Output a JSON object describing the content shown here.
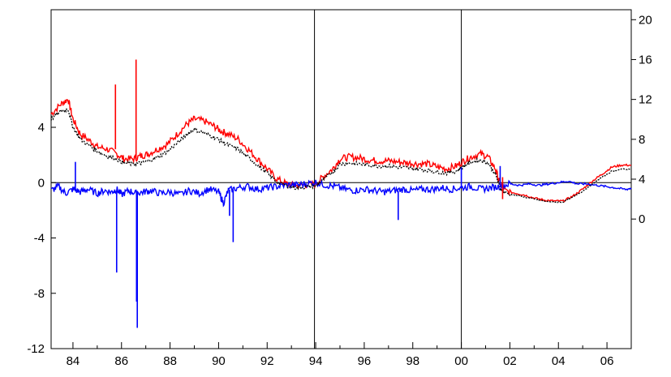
{
  "chart_data": {
    "type": "line",
    "title": "",
    "xlabel": "",
    "ylabel_left": "",
    "ylabel_right": "",
    "x_range": [
      1983.1,
      2007.0
    ],
    "x_tick_labels": [
      "84",
      "86",
      "88",
      "90",
      "92",
      "94",
      "96",
      "98",
      "00",
      "02",
      "04",
      "06"
    ],
    "x_tick_values": [
      1984,
      1986,
      1988,
      1990,
      1992,
      1994,
      1996,
      1998,
      2000,
      2002,
      2004,
      2006
    ],
    "left_axis": {
      "range": [
        -12,
        12.5
      ],
      "ticks": [
        -12,
        -8,
        -4,
        0,
        4
      ],
      "tick_labels": [
        "-12",
        "-8",
        "-4",
        "0",
        "4"
      ]
    },
    "right_axis": {
      "range": [
        -13,
        21
      ],
      "ticks": [
        0,
        4,
        8,
        12,
        16,
        20
      ],
      "tick_labels": [
        "0",
        "4",
        "8",
        "12",
        "16",
        "20"
      ]
    },
    "vertical_lines": [
      1993.95,
      2000.0
    ],
    "horizontal_zero_line": true,
    "grid": false,
    "legend": "none",
    "series": [
      {
        "axis": "right",
        "color": "#ff0000",
        "style": "solid",
        "x": [
          1983.1,
          1983.5,
          1983.8,
          1984.0,
          1984.3,
          1984.7,
          1985.0,
          1985.4,
          1985.8,
          1986.1,
          1986.5,
          1986.8,
          1987.1,
          1987.5,
          1987.9,
          1988.3,
          1988.7,
          1989.0,
          1989.4,
          1989.8,
          1990.1,
          1990.4,
          1990.8,
          1991.2,
          1991.6,
          1992.0,
          1992.4,
          1992.8,
          1993.2,
          1993.6,
          1994.0,
          1994.3,
          1994.7,
          1995.0,
          1995.4,
          1995.8,
          1996.2,
          1996.6,
          1997.0,
          1997.4,
          1997.8,
          1998.2,
          1998.6,
          1999.0,
          1999.4,
          1999.8,
          2000.1,
          2000.4,
          2000.8,
          2001.1,
          2001.4,
          2001.6,
          2001.8,
          2002.2,
          2002.6,
          2003.0,
          2003.4,
          2003.8,
          2004.2,
          2004.6,
          2005.0,
          2005.4,
          2005.8,
          2006.2,
          2006.6,
          2007.0
        ],
        "y": [
          10.5,
          11.5,
          12.0,
          10.0,
          8.5,
          7.8,
          7.2,
          7.0,
          6.5,
          6.0,
          6.0,
          6.3,
          6.5,
          7.0,
          7.5,
          8.5,
          9.5,
          10.0,
          9.8,
          9.3,
          8.8,
          8.5,
          8.0,
          7.0,
          6.0,
          5.0,
          4.0,
          3.5,
          3.3,
          3.4,
          3.5,
          4.2,
          5.0,
          6.0,
          6.2,
          6.1,
          5.9,
          5.8,
          5.8,
          5.7,
          5.6,
          5.5,
          5.5,
          5.2,
          5.0,
          5.3,
          5.8,
          6.2,
          6.5,
          6.2,
          5.0,
          3.5,
          2.8,
          2.6,
          2.4,
          2.1,
          1.9,
          1.8,
          1.8,
          2.3,
          3.0,
          3.8,
          4.5,
          5.2,
          5.4,
          5.4
        ]
      },
      {
        "axis": "right",
        "color": "#000000",
        "style": "dotted",
        "x": [
          1983.1,
          1983.5,
          1983.8,
          1984.0,
          1984.3,
          1984.7,
          1985.0,
          1985.4,
          1985.8,
          1986.1,
          1986.5,
          1986.8,
          1987.1,
          1987.5,
          1987.9,
          1988.3,
          1988.7,
          1989.0,
          1989.4,
          1989.8,
          1990.1,
          1990.4,
          1990.8,
          1991.2,
          1991.6,
          1992.0,
          1992.4,
          1992.8,
          1993.2,
          1993.6,
          1994.0,
          1994.3,
          1994.7,
          1995.0,
          1995.4,
          1995.8,
          1996.2,
          1996.6,
          1997.0,
          1997.4,
          1997.8,
          1998.2,
          1998.6,
          1999.0,
          1999.4,
          1999.8,
          2000.1,
          2000.4,
          2000.8,
          2001.1,
          2001.4,
          2001.6,
          2001.8,
          2002.2,
          2002.6,
          2003.0,
          2003.4,
          2003.8,
          2004.2,
          2004.6,
          2005.0,
          2005.4,
          2005.8,
          2006.2,
          2006.6,
          2007.0
        ],
        "y": [
          10.0,
          10.8,
          11.0,
          9.2,
          8.0,
          7.3,
          6.8,
          6.3,
          6.0,
          5.6,
          5.5,
          5.6,
          5.8,
          6.2,
          6.8,
          7.6,
          8.5,
          9.0,
          8.6,
          8.2,
          7.8,
          7.4,
          7.0,
          6.2,
          5.4,
          4.6,
          3.7,
          3.3,
          3.1,
          3.2,
          3.3,
          3.9,
          4.7,
          5.5,
          5.6,
          5.5,
          5.4,
          5.3,
          5.3,
          5.2,
          5.1,
          5.0,
          4.9,
          4.7,
          4.6,
          4.8,
          5.3,
          5.7,
          5.9,
          5.6,
          4.5,
          3.1,
          2.6,
          2.4,
          2.2,
          2.0,
          1.8,
          1.7,
          1.7,
          2.2,
          2.8,
          3.5,
          4.2,
          4.8,
          5.0,
          5.0
        ]
      },
      {
        "axis": "left",
        "color": "#0000ff",
        "style": "solid",
        "x": [
          1983.1,
          1983.4,
          1983.7,
          1984.0,
          1984.3,
          1984.6,
          1985.0,
          1985.3,
          1985.6,
          1985.8,
          1986.0,
          1986.3,
          1986.6,
          1986.9,
          1987.2,
          1987.6,
          1988.0,
          1988.4,
          1988.8,
          1989.2,
          1989.6,
          1990.0,
          1990.2,
          1990.4,
          1990.8,
          1991.2,
          1991.6,
          1992.0,
          1992.4,
          1992.8,
          1993.2,
          1993.6,
          1994.0,
          1994.4,
          1994.8,
          1995.2,
          1995.6,
          1996.0,
          1996.4,
          1996.8,
          1997.2,
          1997.6,
          1998.0,
          1998.4,
          1998.8,
          1999.2,
          1999.6,
          2000.0,
          2000.4,
          2000.8,
          2001.2,
          2001.6,
          2002.0,
          2002.4,
          2002.8,
          2003.2,
          2003.6,
          2004.0,
          2004.4,
          2004.8,
          2005.2,
          2005.6,
          2006.0,
          2006.4,
          2006.8,
          2007.0
        ],
        "y": [
          -0.6,
          -0.3,
          -0.8,
          -0.5,
          -0.7,
          -0.5,
          -0.8,
          -0.6,
          -0.7,
          -0.5,
          -0.9,
          -0.6,
          -0.8,
          -0.7,
          -0.6,
          -0.8,
          -0.7,
          -0.9,
          -0.6,
          -0.8,
          -0.5,
          -0.7,
          -1.5,
          -0.6,
          -0.4,
          -0.3,
          -0.5,
          -0.4,
          -0.3,
          -0.2,
          -0.2,
          -0.1,
          0.0,
          -0.2,
          -0.3,
          -0.5,
          -0.6,
          -0.5,
          -0.6,
          -0.7,
          -0.6,
          -0.5,
          -0.6,
          -0.5,
          -0.5,
          -0.4,
          -0.5,
          -0.4,
          -0.3,
          -0.5,
          -0.4,
          -0.3,
          -0.1,
          -0.2,
          -0.1,
          -0.2,
          -0.1,
          0.0,
          0.1,
          -0.1,
          -0.1,
          -0.2,
          -0.3,
          -0.4,
          -0.5,
          -0.4
        ]
      }
    ],
    "spikes": [
      {
        "series": 0,
        "x": 1985.75,
        "from": 7.0,
        "to": 13.5
      },
      {
        "series": 0,
        "x": 1986.6,
        "from": 6.0,
        "to": 16.0
      },
      {
        "series": 0,
        "x": 2001.7,
        "from": 4.2,
        "to": 2.0
      },
      {
        "series": 2,
        "x": 1984.1,
        "from": -0.6,
        "to": 1.5
      },
      {
        "series": 2,
        "x": 1985.8,
        "from": -0.6,
        "to": -6.5
      },
      {
        "series": 2,
        "x": 1986.65,
        "from": -0.6,
        "to": -10.5
      },
      {
        "series": 2,
        "x": 1986.62,
        "from": -0.6,
        "to": -8.6
      },
      {
        "series": 2,
        "x": 1990.6,
        "from": -0.5,
        "to": -4.3
      },
      {
        "series": 2,
        "x": 1990.45,
        "from": -0.5,
        "to": -2.4
      },
      {
        "series": 2,
        "x": 2000.0,
        "from": -0.4,
        "to": 1.1
      },
      {
        "series": 2,
        "x": 2001.6,
        "from": -0.3,
        "to": 1.2
      },
      {
        "series": 2,
        "x": 1997.4,
        "from": -0.6,
        "to": -2.7
      }
    ]
  }
}
